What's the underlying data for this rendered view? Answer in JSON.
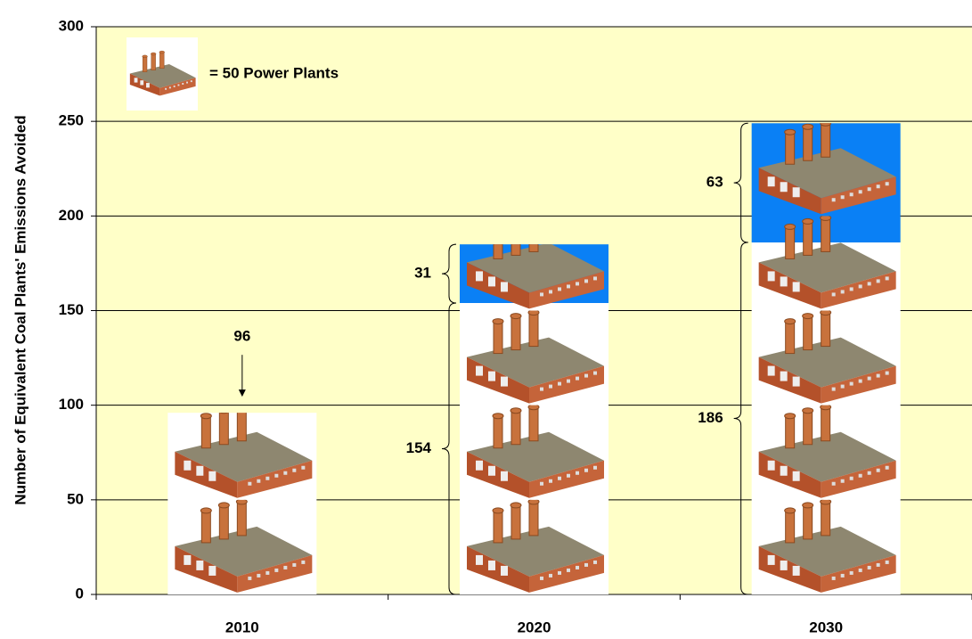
{
  "chart_data": {
    "type": "pictograph_stacked_bar",
    "y_label": "Number of Equivalent Coal Plants' Emissions Avoided",
    "categories": [
      "2010",
      "2020",
      "2030"
    ],
    "series": [
      {
        "color": "#ffffff",
        "values": [
          96,
          154,
          186
        ]
      },
      {
        "color": "#0a80f5",
        "values": [
          null,
          31,
          63
        ]
      }
    ],
    "icon_unit": 50,
    "legend_label": "= 50 Power Plants",
    "ylim": [
      0,
      300
    ],
    "yticks": [
      0,
      50,
      100,
      150,
      200,
      250,
      300
    ],
    "grid": true,
    "plot_background": "#ffffc8"
  }
}
